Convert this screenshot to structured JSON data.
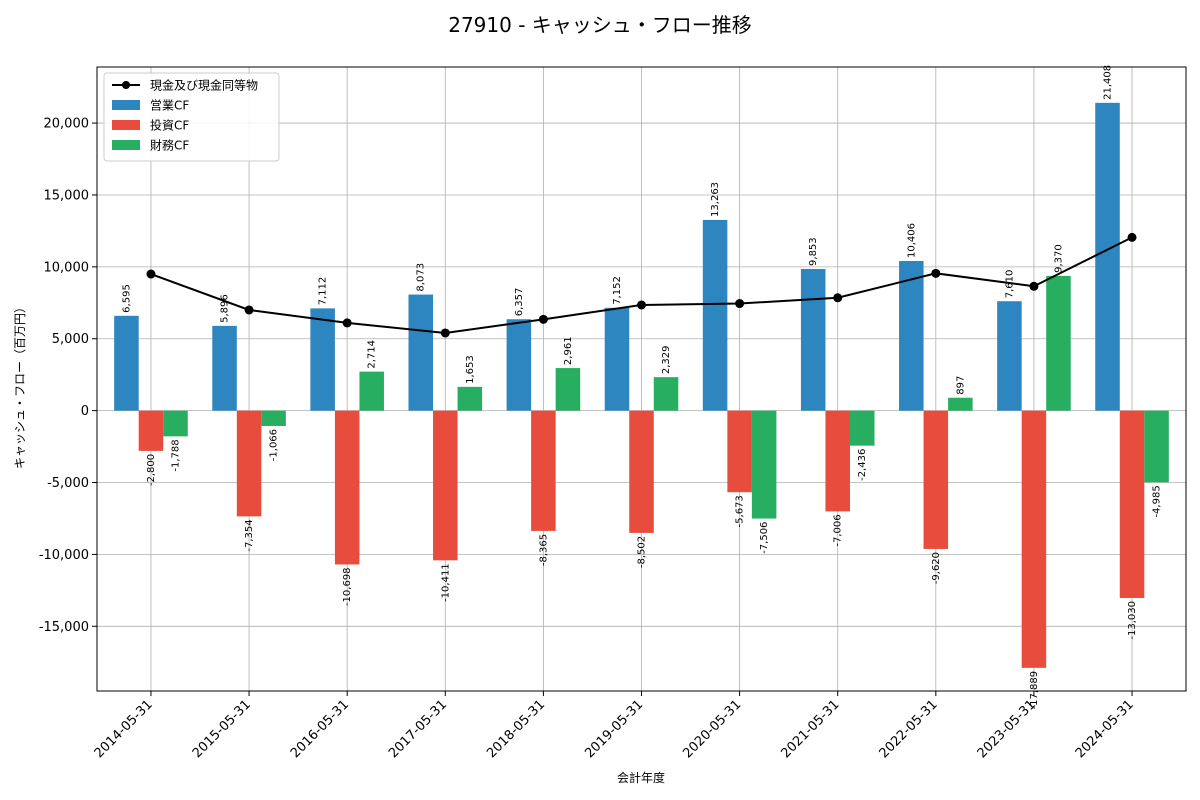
{
  "chart_data": {
    "type": "bar",
    "title": "27910 - キャッシュ・フロー推移",
    "xlabel": "会計年度",
    "ylabel": "キャッシュ・フロー（百万円）",
    "categories": [
      "2014-05-31",
      "2015-05-31",
      "2016-05-31",
      "2017-05-31",
      "2018-05-31",
      "2019-05-31",
      "2020-05-31",
      "2021-05-31",
      "2022-05-31",
      "2023-05-31",
      "2024-05-31"
    ],
    "ylim": [
      -19500,
      23900
    ],
    "yticks": [
      -15000,
      -10000,
      -5000,
      0,
      5000,
      10000,
      15000,
      20000
    ],
    "ytick_labels": [
      "-15,000",
      "-10,000",
      "-5,000",
      "0",
      "5,000",
      "10,000",
      "15,000",
      "20,000"
    ],
    "grid": true,
    "legend_position": "upper-left",
    "series": [
      {
        "name": "営業CF",
        "kind": "bar",
        "color": "#2e86c1",
        "values": [
          6595,
          5896,
          7112,
          8073,
          6357,
          7152,
          13263,
          9853,
          10406,
          7610,
          21408
        ],
        "labels": [
          "6,595",
          "5,896",
          "7,112",
          "8,073",
          "6,357",
          "7,152",
          "13,263",
          "9,853",
          "10,406",
          "7,610",
          "21,408"
        ]
      },
      {
        "name": "投資CF",
        "kind": "bar",
        "color": "#e74c3c",
        "values": [
          -2800,
          -7354,
          -10698,
          -10411,
          -8365,
          -8502,
          -5673,
          -7006,
          -9620,
          -17889,
          -13030
        ],
        "labels": [
          "-2,800",
          "-7,354",
          "-10,698",
          "-10,411",
          "-8,365",
          "-8,502",
          "-5,673",
          "-7,006",
          "-9,620",
          "-17,889",
          "-13,030"
        ]
      },
      {
        "name": "財務CF",
        "kind": "bar",
        "color": "#27ae60",
        "values": [
          -1788,
          -1066,
          2714,
          1653,
          2961,
          2329,
          -7506,
          -2436,
          897,
          9370,
          -4985
        ],
        "labels": [
          "-1,788",
          "-1,066",
          "2,714",
          "1,653",
          "2,961",
          "2,329",
          "-7,506",
          "-2,436",
          "897",
          "9,370",
          "-4,985"
        ]
      },
      {
        "name": "現金及び現金同等物",
        "kind": "line",
        "color": "#000000",
        "values": [
          9500,
          7000,
          6100,
          5400,
          6350,
          7350,
          7450,
          7850,
          9550,
          8650,
          12050
        ]
      }
    ]
  }
}
